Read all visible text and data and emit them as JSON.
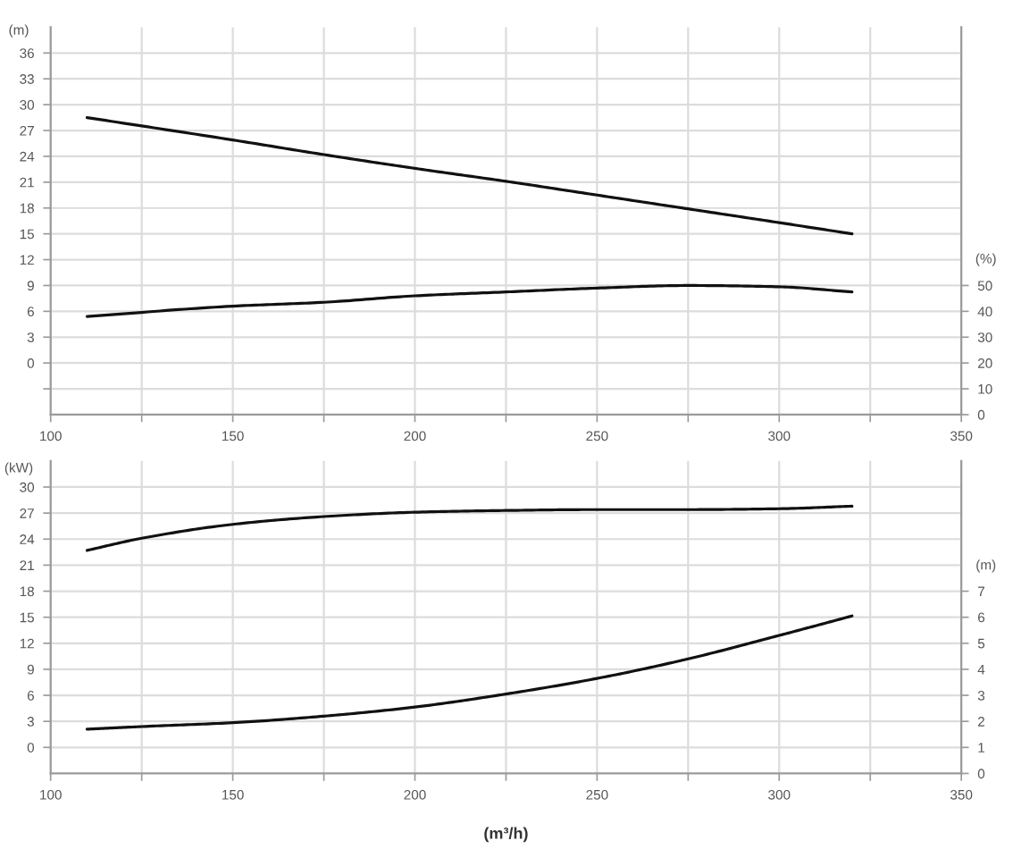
{
  "chart_data": [
    {
      "type": "line",
      "ylabel": "(m)",
      "y2label": "(%)",
      "xlim": [
        100,
        350
      ],
      "xticks": [
        100,
        {
          "value": 125,
          "label": null
        },
        150,
        {
          "value": 175,
          "label": null
        },
        200,
        {
          "value": 225,
          "label": null
        },
        250,
        {
          "value": 275,
          "label": null
        },
        300,
        {
          "value": 325,
          "label": null
        },
        350
      ],
      "ylim": [
        -6,
        39
      ],
      "yticks": [
        {
          "value": -3,
          "label": null
        },
        0,
        3,
        6,
        9,
        12,
        15,
        18,
        21,
        24,
        27,
        30,
        33,
        36
      ],
      "y2lim": [
        0,
        150
      ],
      "y2ticks": [
        0,
        10,
        20,
        30,
        40,
        50
      ],
      "grid": true,
      "series": [
        {
          "color": "#111111",
          "x": [
            110,
            150,
            175,
            200,
            225,
            250,
            275,
            300,
            320
          ],
          "values": [
            28.5,
            25.9,
            24.2,
            22.6,
            21.1,
            19.5,
            17.9,
            16.3,
            15.0
          ]
        },
        {
          "color": "#111111",
          "axis": "y2",
          "x": [
            110,
            150,
            175,
            200,
            225,
            250,
            275,
            300,
            320
          ],
          "values": [
            38,
            42,
            43.5,
            46,
            47.5,
            49,
            50,
            49.5,
            47.5
          ]
        }
      ]
    },
    {
      "type": "line",
      "ylabel": "(kW)",
      "y2label": "(m)",
      "xlabel": "(m³/h)",
      "xlim": [
        100,
        350
      ],
      "xticks": [
        100,
        {
          "value": 125,
          "label": null
        },
        150,
        {
          "value": 175,
          "label": null
        },
        200,
        {
          "value": 225,
          "label": null
        },
        250,
        {
          "value": 275,
          "label": null
        },
        300,
        {
          "value": 325,
          "label": null
        },
        350
      ],
      "ylim": [
        -3,
        33
      ],
      "yticks": [
        0,
        3,
        6,
        9,
        12,
        15,
        18,
        21,
        24,
        27,
        30
      ],
      "y2lim": [
        0,
        12
      ],
      "y2ticks": [
        0,
        1,
        2,
        3,
        4,
        5,
        6,
        7
      ],
      "grid": true,
      "series": [
        {
          "color": "#111111",
          "x": [
            110,
            125,
            150,
            175,
            200,
            225,
            250,
            275,
            300,
            320
          ],
          "values": [
            22.7,
            24.1,
            25.7,
            26.6,
            27.1,
            27.3,
            27.4,
            27.4,
            27.5,
            27.8
          ]
        },
        {
          "color": "#111111",
          "axis": "y2",
          "x": [
            110,
            125,
            150,
            175,
            200,
            225,
            250,
            275,
            300,
            320
          ],
          "values": [
            1.7,
            1.8,
            1.95,
            2.2,
            2.55,
            3.05,
            3.65,
            4.4,
            5.3,
            6.05
          ]
        }
      ]
    }
  ]
}
